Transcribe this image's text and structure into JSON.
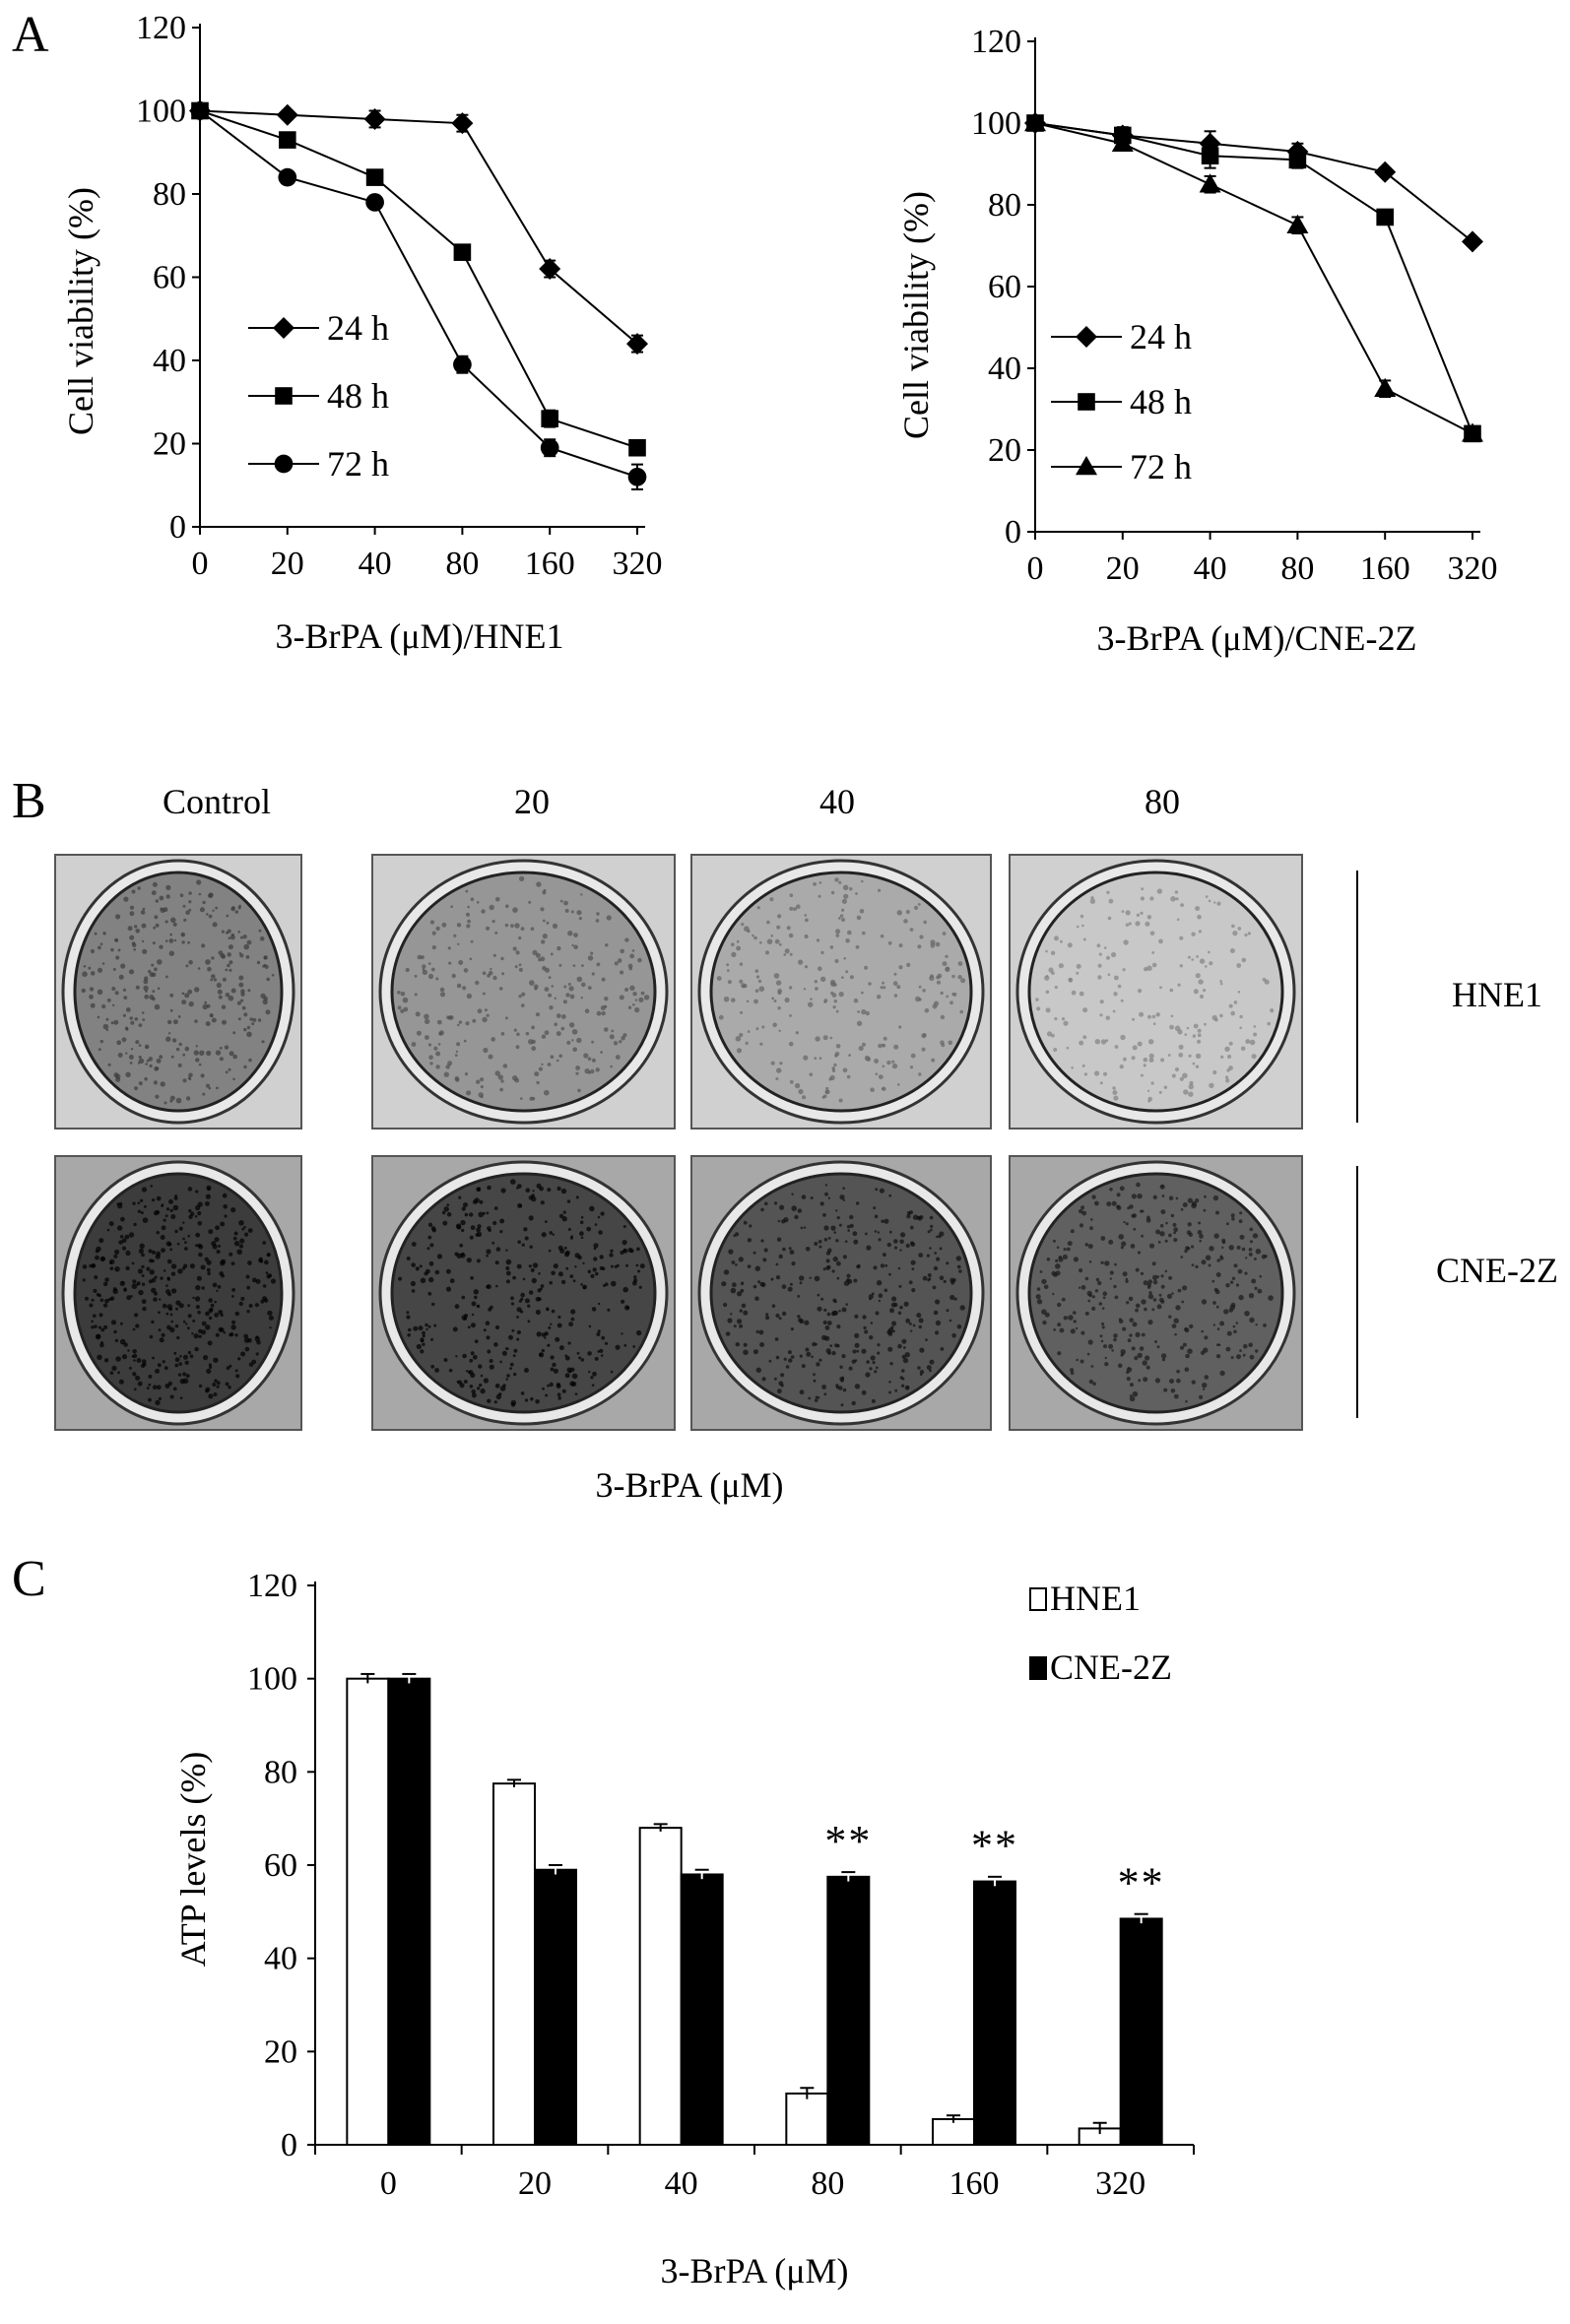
{
  "panels": {
    "A": "A",
    "B": "B",
    "C": "C"
  },
  "chart_data": [
    {
      "type": "line",
      "panel": "A",
      "categories": [
        "0",
        "20",
        "40",
        "80",
        "160",
        "320"
      ],
      "xlabel": "3-BrPA (μM)/HNE1",
      "ylabel": "Cell viability (%)",
      "ylim": [
        0,
        120
      ],
      "yticks": [
        "0",
        "20",
        "40",
        "60",
        "80",
        "100",
        "120"
      ],
      "legend_position": "lower-left",
      "series": [
        {
          "name": "24 h",
          "marker": "diamond",
          "values": [
            100,
            99,
            98,
            97,
            62,
            44
          ],
          "errors": [
            1,
            1,
            2,
            2,
            2,
            2
          ]
        },
        {
          "name": "48 h",
          "marker": "square",
          "values": [
            100,
            93,
            84,
            66,
            26,
            19
          ],
          "errors": [
            1,
            1,
            1,
            1,
            2,
            1
          ]
        },
        {
          "name": "72 h",
          "marker": "circle",
          "values": [
            100,
            84,
            78,
            39,
            19,
            12
          ],
          "errors": [
            1,
            1,
            1,
            2,
            2,
            3
          ]
        }
      ]
    },
    {
      "type": "line",
      "panel": "A",
      "categories": [
        "0",
        "20",
        "40",
        "80",
        "160",
        "320"
      ],
      "xlabel": "3-BrPA (μM)/CNE-2Z",
      "ylabel": "Cell viability (%)",
      "ylim": [
        0,
        120
      ],
      "yticks": [
        "0",
        "20",
        "40",
        "60",
        "80",
        "100",
        "120"
      ],
      "legend_position": "lower-left",
      "series": [
        {
          "name": "24 h",
          "marker": "diamond",
          "values": [
            100,
            97,
            95,
            93,
            88,
            71
          ],
          "errors": [
            1,
            2,
            3,
            2,
            1,
            1
          ]
        },
        {
          "name": "48 h",
          "marker": "square",
          "values": [
            100,
            97,
            92,
            91,
            77,
            24
          ],
          "errors": [
            1,
            1,
            3,
            2,
            1,
            1
          ]
        },
        {
          "name": "72 h",
          "marker": "triangle",
          "values": [
            100,
            95,
            85,
            75,
            35,
            24
          ],
          "errors": [
            1,
            1,
            2,
            2,
            2,
            1
          ]
        }
      ]
    },
    {
      "type": "bar",
      "panel": "C",
      "categories": [
        "0",
        "20",
        "40",
        "80",
        "160",
        "320"
      ],
      "xlabel": "3-BrPA (μM)",
      "ylabel": "ATP levels (%)",
      "ylim": [
        0,
        120
      ],
      "yticks": [
        "0",
        "20",
        "40",
        "60",
        "80",
        "100",
        "120"
      ],
      "legend_position": "top-right",
      "series": [
        {
          "name": "HNE1",
          "fill": "#ffffff",
          "values": [
            100,
            77.5,
            68,
            11,
            5.5,
            3.5
          ],
          "errors": [
            1,
            0.8,
            0.8,
            1.2,
            0.8,
            1.2
          ]
        },
        {
          "name": "CNE-2Z",
          "fill": "#000000",
          "values": [
            100,
            59,
            58,
            57.5,
            56.5,
            48.5
          ],
          "errors": [
            1,
            1,
            1,
            1,
            1,
            1
          ]
        }
      ],
      "annotations": [
        {
          "category": "80",
          "text": "**"
        },
        {
          "category": "160",
          "text": "**"
        },
        {
          "category": "320",
          "text": "**"
        }
      ]
    }
  ],
  "panel_b": {
    "column_labels": [
      "Control",
      "20",
      "40",
      "80"
    ],
    "row_labels": [
      "HNE1",
      "CNE-2Z"
    ],
    "xlabel": "3-BrPA (μM)",
    "wells": [
      [
        {
          "stain": 0.55
        },
        {
          "stain": 0.45
        },
        {
          "stain": 0.35
        },
        {
          "stain": 0.2
        }
      ],
      [
        {
          "stain": 0.9
        },
        {
          "stain": 0.85
        },
        {
          "stain": 0.78
        },
        {
          "stain": 0.72
        }
      ]
    ]
  }
}
